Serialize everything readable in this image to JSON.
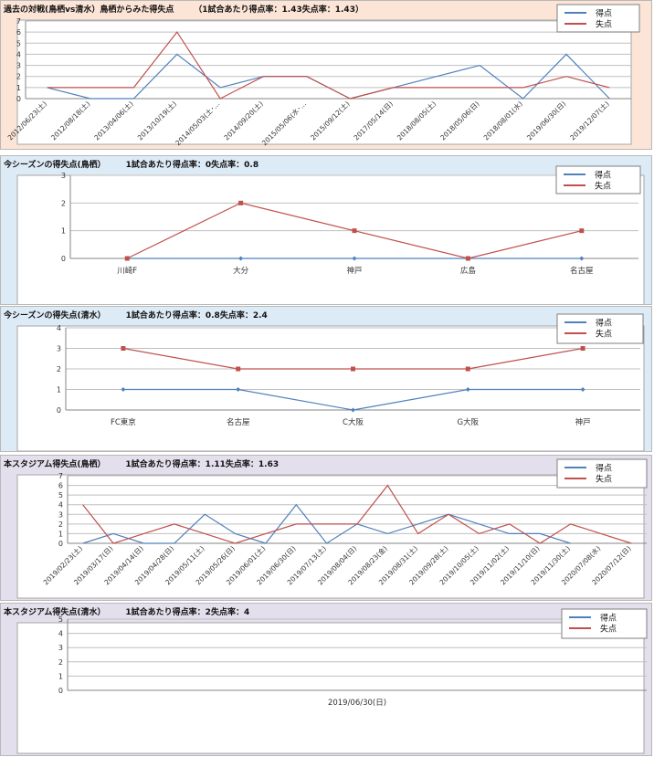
{
  "colors": {
    "scored": "#4f81bd",
    "conceded": "#c0504d",
    "grid": "#bfbfbf",
    "axis": "#868686"
  },
  "chart_data": [
    {
      "type": "line",
      "title": "過去の対戦(鳥栖vs清水）鳥栖からみた得失点",
      "subtitle": "（1試合あたり得点率：1.43失点率：1.43）",
      "categories": [
        "2012/06/23(土)",
        "2012/08/18(土)",
        "2013/04/06(土)",
        "2013/10/19(土)",
        "2014/05/03(土･…",
        "2014/09/20(土)",
        "2015/05/06(水･…",
        "2015/09/12(土)",
        "2017/05/14(日)",
        "2018/08/05(土)",
        "2018/05/06(日)",
        "2018/08/01(水)",
        "2019/06/30(日)",
        "2019/12/07(土)"
      ],
      "ylim": [
        0,
        7
      ],
      "yticks": [
        0,
        1,
        2,
        3,
        4,
        5,
        6,
        7
      ],
      "markers": false,
      "legend": "top-right",
      "series": [
        {
          "name": "得点",
          "values": [
            1,
            0,
            0,
            4,
            1,
            2,
            2,
            0,
            1,
            2,
            3,
            0,
            4,
            0
          ]
        },
        {
          "name": "失点",
          "values": [
            1,
            1,
            1,
            6,
            0,
            2,
            2,
            0,
            1,
            1,
            1,
            1,
            2,
            1
          ]
        }
      ]
    },
    {
      "type": "line",
      "title": "今シーズンの得失点(鳥栖）",
      "subtitle": "1試合あたり得点率：0失点率：0.8",
      "categories": [
        "川崎F",
        "大分",
        "神戸",
        "広島",
        "名古屋"
      ],
      "ylim": [
        0,
        3
      ],
      "yticks": [
        0,
        1,
        2,
        3
      ],
      "markers": true,
      "legend": "top-right",
      "series": [
        {
          "name": "得点",
          "values": [
            0,
            0,
            0,
            0,
            0
          ]
        },
        {
          "name": "失点",
          "values": [
            0,
            2,
            1,
            0,
            1
          ]
        }
      ]
    },
    {
      "type": "line",
      "title": "今シーズンの得失点(清水）",
      "subtitle": "1試合あたり得点率：0.8失点率：2.4",
      "categories": [
        "FC東京",
        "名古屋",
        "C大阪",
        "G大阪",
        "神戸"
      ],
      "ylim": [
        0,
        4
      ],
      "yticks": [
        0,
        1,
        2,
        3,
        4
      ],
      "markers": true,
      "legend": "top-right",
      "series": [
        {
          "name": "得点",
          "values": [
            1,
            1,
            0,
            1,
            1
          ]
        },
        {
          "name": "失点",
          "values": [
            3,
            2,
            2,
            2,
            3
          ]
        }
      ]
    },
    {
      "type": "line",
      "title": "本スタジアム得失点(鳥栖）",
      "subtitle": "1試合あたり得点率：1.11失点率：1.63",
      "categories": [
        "2019/02/23(土)",
        "2019/03/17(日)",
        "2019/04/14(日)",
        "2019/04/28(日)",
        "2019/05/11(土)",
        "2019/05/26(日)",
        "2019/06/01(土)",
        "2019/06/30(日)",
        "2019/07/13(土)",
        "2019/08/04(日)",
        "2019/08/23(金)",
        "2019/08/31(土)",
        "2019/09/28(土)",
        "2019/10/05(土)",
        "2019/11/02(土)",
        "2019/11/10(日)",
        "2019/11/30(土)",
        "2020/07/08(水)",
        "2020/07/12(日)"
      ],
      "ylim": [
        0,
        7
      ],
      "yticks": [
        0,
        1,
        2,
        3,
        4,
        5,
        6,
        7
      ],
      "markers": false,
      "legend": "top-right",
      "series": [
        {
          "name": "得点",
          "values": [
            0,
            1,
            0,
            0,
            3,
            1,
            0,
            4,
            0,
            2,
            1,
            2,
            3,
            2,
            1,
            1,
            0,
            null,
            null
          ]
        },
        {
          "name": "失点",
          "values": [
            4,
            0,
            1,
            2,
            1,
            0,
            1,
            2,
            2,
            2,
            6,
            1,
            3,
            1,
            2,
            0,
            2,
            1,
            0
          ]
        }
      ]
    },
    {
      "type": "line",
      "title": "本スタジアム得失点(清水）",
      "subtitle": "1試合あたり得点率：2失点率：4",
      "categories": [
        "2019/06/30(日)"
      ],
      "ylim": [
        0,
        5
      ],
      "yticks": [
        0,
        1,
        2,
        3,
        4,
        5
      ],
      "markers": false,
      "legend": "top-right",
      "series": [
        {
          "name": "得点",
          "values": [
            null
          ]
        },
        {
          "name": "失点",
          "values": [
            null
          ]
        }
      ]
    }
  ]
}
